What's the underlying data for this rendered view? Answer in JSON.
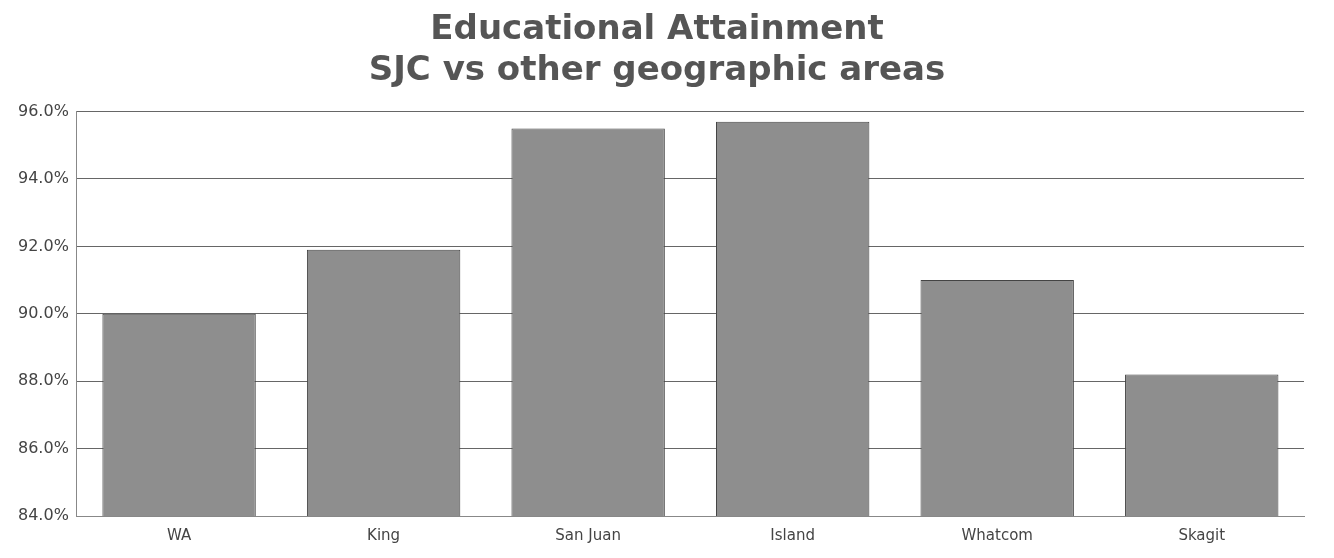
{
  "chart_data": {
    "type": "bar",
    "title": [
      "Educational Attainment",
      "SJC vs other geographic areas"
    ],
    "categories": [
      "WA",
      "King",
      "San Juan",
      "Island",
      "Whatcom",
      "Skagit"
    ],
    "values": [
      90.0,
      91.9,
      95.5,
      95.7,
      91.0,
      88.2
    ],
    "color": "#8e8e8e",
    "ylim": [
      84,
      96
    ],
    "yticks": [
      {
        "value": 84,
        "label": "84.0%"
      },
      {
        "value": 86,
        "label": "86.0%"
      },
      {
        "value": 88,
        "label": "88.0%"
      },
      {
        "value": 90,
        "label": "90.0%"
      },
      {
        "value": 92,
        "label": "92.0%"
      },
      {
        "value": 94,
        "label": "94.0%"
      },
      {
        "value": 96,
        "label": "96.0%"
      }
    ],
    "grid": "y"
  }
}
